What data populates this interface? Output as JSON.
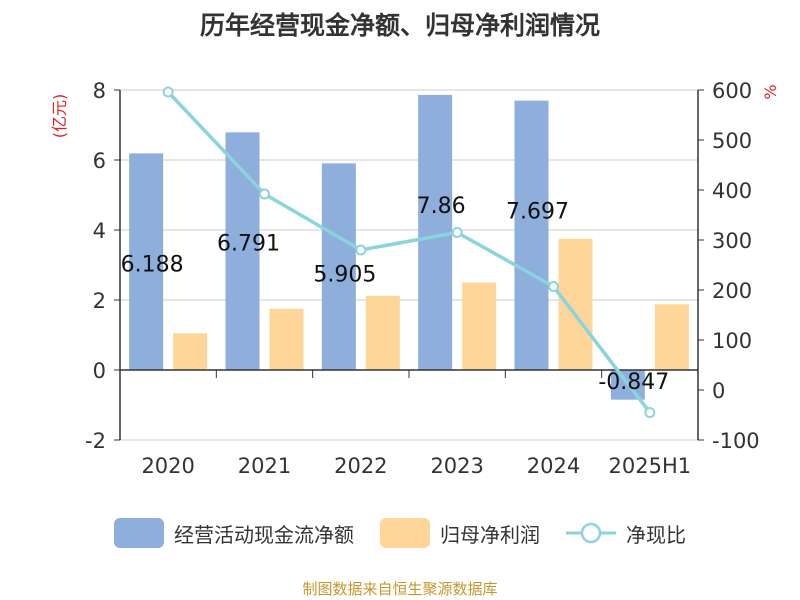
{
  "chart_data": {
    "type": "bar",
    "title": "历年经营现金净额、归母净利润情况",
    "categories": [
      "2020",
      "2021",
      "2022",
      "2023",
      "2024",
      "2025H1"
    ],
    "series": [
      {
        "name": "经营活动现金流净额",
        "kind": "bar",
        "axis": "left",
        "color": "#8eaedc",
        "values": [
          6.188,
          6.791,
          5.905,
          7.86,
          7.697,
          -0.847
        ],
        "data_labels": [
          "6.188",
          "6.791",
          "5.905",
          "7.86",
          "7.697",
          "-0.847"
        ]
      },
      {
        "name": "归母净利润",
        "kind": "bar",
        "axis": "left",
        "color": "#ffd699",
        "values": [
          1.05,
          1.75,
          2.12,
          2.5,
          3.75,
          1.88
        ]
      },
      {
        "name": "净现比",
        "kind": "line",
        "axis": "right",
        "color": "#8bd3dd",
        "values": [
          596,
          392,
          280,
          315,
          207,
          -45
        ]
      }
    ],
    "y_left": {
      "label": "(亿元)",
      "range": [
        -2,
        8
      ],
      "ticks": [
        "-2",
        "0",
        "2",
        "4",
        "6",
        "8"
      ]
    },
    "y_right": {
      "label": "%",
      "range": [
        -100,
        600
      ],
      "ticks": [
        "-100",
        "0",
        "100",
        "200",
        "300",
        "400",
        "500",
        "600"
      ]
    },
    "grid": true,
    "legend_position": "bottom"
  },
  "footer": {
    "source_text": "制图数据来自恒生聚源数据库",
    "color": "#c8962d"
  },
  "colors": {
    "axis_label_red": "#e02020",
    "grid": "#cccccc",
    "text": "#333333"
  }
}
